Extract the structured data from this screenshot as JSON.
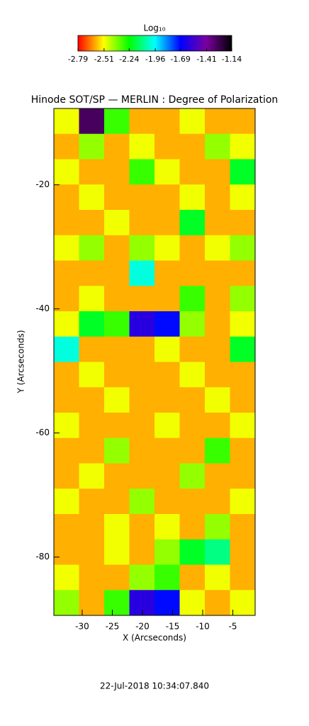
{
  "chart_data": {
    "type": "heatmap",
    "title": "Hinode SOT/SP — MERLIN : Degree of Polarization",
    "x_label": "X (Arcseconds)",
    "y_label": "Y (Arcseconds)",
    "colorbar_label": "Log₁₀",
    "footer": "22-Jul-2018 10:34:07.840",
    "xlim": [
      -34.7,
      -1.3
    ],
    "ylim": [
      -89.4,
      -7.7
    ],
    "xticks": [
      -30,
      -25,
      -20,
      -15,
      -10,
      -5
    ],
    "yticks": [
      -20,
      -40,
      -60,
      -80
    ],
    "clim": [
      -2.79,
      -1.14
    ],
    "colorbar_ticks": [
      -2.79,
      -2.51,
      -2.24,
      -1.96,
      -1.69,
      -1.41,
      -1.14
    ],
    "colormap": [
      "#ff0000",
      "#ffff00",
      "#00ff00",
      "#00ffff",
      "#0000ff",
      "#7a00a0",
      "#000000"
    ],
    "values": [
      [
        -2.5,
        -1.3,
        -2.3,
        -2.6,
        -2.6,
        -2.5,
        -2.6,
        -2.6
      ],
      [
        -2.6,
        -2.4,
        -2.6,
        -2.5,
        -2.6,
        -2.6,
        -2.4,
        -2.5
      ],
      [
        -2.5,
        -2.6,
        -2.6,
        -2.3,
        -2.5,
        -2.6,
        -2.6,
        -2.2
      ],
      [
        -2.6,
        -2.5,
        -2.6,
        -2.6,
        -2.6,
        -2.5,
        -2.6,
        -2.5
      ],
      [
        -2.6,
        -2.6,
        -2.5,
        -2.6,
        -2.6,
        -2.2,
        -2.6,
        -2.6
      ],
      [
        -2.5,
        -2.4,
        -2.6,
        -2.4,
        -2.5,
        -2.6,
        -2.5,
        -2.4
      ],
      [
        -2.6,
        -2.6,
        -2.6,
        -2.0,
        -2.6,
        -2.6,
        -2.6,
        -2.6
      ],
      [
        -2.6,
        -2.5,
        -2.6,
        -2.6,
        -2.6,
        -2.3,
        -2.6,
        -2.4
      ],
      [
        -2.5,
        -2.2,
        -2.3,
        -1.6,
        -1.7,
        -2.4,
        -2.6,
        -2.5
      ],
      [
        -2.0,
        -2.6,
        -2.6,
        -2.6,
        -2.5,
        -2.6,
        -2.6,
        -2.2
      ],
      [
        -2.6,
        -2.5,
        -2.6,
        -2.6,
        -2.6,
        -2.5,
        -2.6,
        -2.6
      ],
      [
        -2.6,
        -2.6,
        -2.5,
        -2.6,
        -2.6,
        -2.6,
        -2.5,
        -2.6
      ],
      [
        -2.5,
        -2.6,
        -2.6,
        -2.6,
        -2.5,
        -2.6,
        -2.6,
        -2.5
      ],
      [
        -2.6,
        -2.6,
        -2.4,
        -2.6,
        -2.6,
        -2.6,
        -2.3,
        -2.6
      ],
      [
        -2.6,
        -2.5,
        -2.6,
        -2.6,
        -2.6,
        -2.4,
        -2.6,
        -2.6
      ],
      [
        -2.5,
        -2.6,
        -2.6,
        -2.4,
        -2.6,
        -2.6,
        -2.6,
        -2.5
      ],
      [
        -2.6,
        -2.6,
        -2.5,
        -2.6,
        -2.5,
        -2.6,
        -2.4,
        -2.6
      ],
      [
        -2.6,
        -2.6,
        -2.5,
        -2.6,
        -2.4,
        -2.2,
        -2.1,
        -2.6
      ],
      [
        -2.5,
        -2.6,
        -2.6,
        -2.4,
        -2.3,
        -2.6,
        -2.5,
        -2.6
      ],
      [
        -2.4,
        -2.6,
        -2.3,
        -1.6,
        -1.7,
        -2.5,
        -2.6,
        -2.5
      ]
    ]
  }
}
